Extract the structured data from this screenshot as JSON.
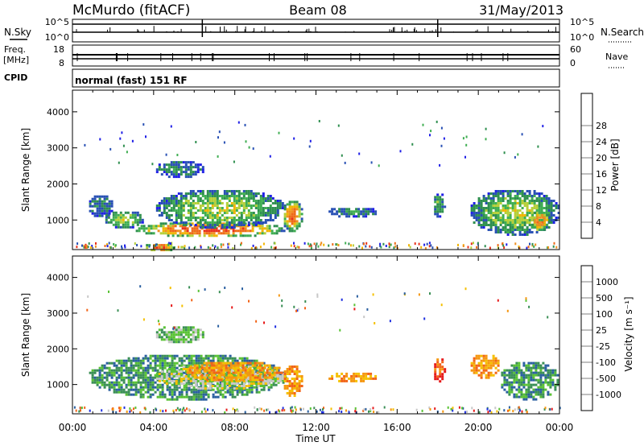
{
  "header": {
    "station": "McMurdo (fitACF)",
    "beam": "Beam 08",
    "date": "31/May/2013"
  },
  "top_panels": {
    "nsky_label": "N.Sky",
    "nsky_ticks": [
      "10^5",
      "10^0"
    ],
    "nsearch_label": "N.Search",
    "nsearch_ticks": [
      "10^5",
      "10^0"
    ],
    "freq_label": "Freq.",
    "freq_unit": "[MHz]",
    "freq_ticks": [
      "18",
      "8"
    ],
    "nave_label": "Nave",
    "nave_ticks": [
      "60",
      "0"
    ],
    "cpid_label": "CPID",
    "cpid_value": "normal (fast) 151 RF"
  },
  "chart_data": [
    {
      "type": "heatmap",
      "quantity": "Power",
      "ylabel": "Slant Range [km]",
      "ylim": [
        180,
        4600
      ],
      "yticks": [
        "1000",
        "2000",
        "3000",
        "4000"
      ],
      "xlim": [
        "00:00",
        "24:00"
      ],
      "colorbar_label": "Power [dB]",
      "colorbar_ticks": [
        "4",
        "8",
        "12",
        "16",
        "20",
        "24",
        "28"
      ],
      "colorbar_colors": [
        "#1f1fe6",
        "#2850b4",
        "#2f8f4f",
        "#3fae52",
        "#b5cf3a",
        "#f2b400",
        "#f09020",
        "#ee6a18",
        "#e8301a"
      ],
      "echo_regions": [
        {
          "start_hr": 0.7,
          "end_hr": 2.0,
          "range_lo_km": 1100,
          "range_hi_km": 1750,
          "level": 2
        },
        {
          "start_hr": 1.5,
          "end_hr": 3.5,
          "range_lo_km": 800,
          "range_hi_km": 1300,
          "level": 4
        },
        {
          "start_hr": 3.0,
          "end_hr": 10.5,
          "range_lo_km": 550,
          "range_hi_km": 1000,
          "level": 8
        },
        {
          "start_hr": 3.5,
          "end_hr": 5.0,
          "range_lo_km": 150,
          "range_hi_km": 400,
          "level": 8
        },
        {
          "start_hr": 4.0,
          "end_hr": 10.5,
          "range_lo_km": 800,
          "range_hi_km": 1900,
          "level": 4
        },
        {
          "start_hr": 4.0,
          "end_hr": 6.5,
          "range_lo_km": 2200,
          "range_hi_km": 2700,
          "level": 2
        },
        {
          "start_hr": 10.3,
          "end_hr": 11.3,
          "range_lo_km": 700,
          "range_hi_km": 1600,
          "level": 7
        },
        {
          "start_hr": 12.5,
          "end_hr": 15.0,
          "range_lo_km": 1100,
          "range_hi_km": 1400,
          "level": 2
        },
        {
          "start_hr": 17.7,
          "end_hr": 18.3,
          "range_lo_km": 1100,
          "range_hi_km": 1800,
          "level": 3
        },
        {
          "start_hr": 19.5,
          "end_hr": 24.0,
          "range_lo_km": 600,
          "range_hi_km": 1900,
          "level": 4
        },
        {
          "start_hr": 22.5,
          "end_hr": 23.5,
          "range_lo_km": 700,
          "range_hi_km": 1300,
          "level": 7
        }
      ]
    },
    {
      "type": "heatmap",
      "quantity": "Velocity",
      "ylabel": "Slant Range [km]",
      "ylim": [
        180,
        4600
      ],
      "yticks": [
        "1000",
        "2000",
        "3000",
        "4000"
      ],
      "xlim": [
        "00:00",
        "24:00"
      ],
      "xticks": [
        "00:00",
        "04:00",
        "08:00",
        "12:00",
        "16:00",
        "20:00",
        "00:00"
      ],
      "xlabel": "Time UT",
      "colorbar_label": "Velocity [m s⁻¹]",
      "colorbar_ticks": [
        "-1000",
        "-500",
        "-100",
        "-25",
        "25",
        "100",
        "500",
        "1000"
      ],
      "colorbar_colors": [
        "#e61a1a",
        "#f26418",
        "#f5960f",
        "#f5c000",
        "#c8c8c8",
        "#59c234",
        "#3a8f55",
        "#2a5fa0",
        "#1e2fe0"
      ],
      "echo_regions": [
        {
          "start_hr": 0.7,
          "end_hr": 10.5,
          "range_lo_km": 600,
          "range_hi_km": 1900,
          "color_index": 6
        },
        {
          "start_hr": 4.0,
          "end_hr": 10.5,
          "range_lo_km": 900,
          "range_hi_km": 1600,
          "color_index": 4
        },
        {
          "start_hr": 5.5,
          "end_hr": 10.3,
          "range_lo_km": 1100,
          "range_hi_km": 1700,
          "color_index": 2
        },
        {
          "start_hr": 4.0,
          "end_hr": 6.5,
          "range_lo_km": 2200,
          "range_hi_km": 2700,
          "color_index": 5
        },
        {
          "start_hr": 10.3,
          "end_hr": 11.3,
          "range_lo_km": 700,
          "range_hi_km": 1600,
          "color_index": 2
        },
        {
          "start_hr": 12.5,
          "end_hr": 15.0,
          "range_lo_km": 1100,
          "range_hi_km": 1400,
          "color_index": 2
        },
        {
          "start_hr": 17.7,
          "end_hr": 18.3,
          "range_lo_km": 1100,
          "range_hi_km": 1800,
          "color_index": 1
        },
        {
          "start_hr": 19.5,
          "end_hr": 21.0,
          "range_lo_km": 1200,
          "range_hi_km": 1900,
          "color_index": 2
        },
        {
          "start_hr": 21.0,
          "end_hr": 24.0,
          "range_lo_km": 600,
          "range_hi_km": 1700,
          "color_index": 6
        }
      ]
    }
  ]
}
